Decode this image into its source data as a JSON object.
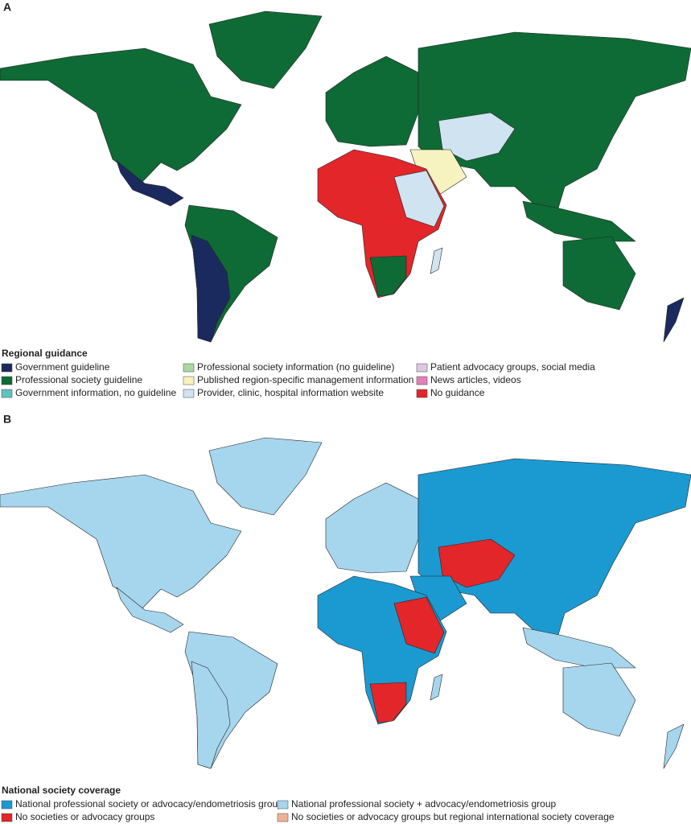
{
  "panel_a": {
    "label": "A",
    "legend_title": "Regional guidance",
    "items": [
      {
        "label": "Government guideline",
        "color": "#1b2a5e"
      },
      {
        "label": "Professional society guideline",
        "color": "#0e6b35"
      },
      {
        "label": "Government information, no guideline",
        "color": "#5fc3bf"
      },
      {
        "label": "Professional society information (no guideline)",
        "color": "#a8d8a0"
      },
      {
        "label": "Published region-specific management information",
        "color": "#f7f3c0"
      },
      {
        "label": "Provider, clinic, hospital information website",
        "color": "#cfe3f1"
      },
      {
        "label": "Patient advocacy groups, social media",
        "color": "#dcc8e4"
      },
      {
        "label": "News articles, videos",
        "color": "#e57fb7"
      },
      {
        "label": "No guidance",
        "color": "#e3262a"
      }
    ]
  },
  "panel_b": {
    "label": "B",
    "legend_title": "National society coverage",
    "items": [
      {
        "label": "National professional society or advocacy/endometriosis group",
        "color": "#1b9ad2"
      },
      {
        "label": "No societies or advocacy groups",
        "color": "#e3262a"
      },
      {
        "label": "National professional society + advocacy/endometriosis group",
        "color": "#a6d6ee"
      },
      {
        "label": "No societies or advocacy groups but regional international society coverage",
        "color": "#f2b197"
      }
    ]
  }
}
